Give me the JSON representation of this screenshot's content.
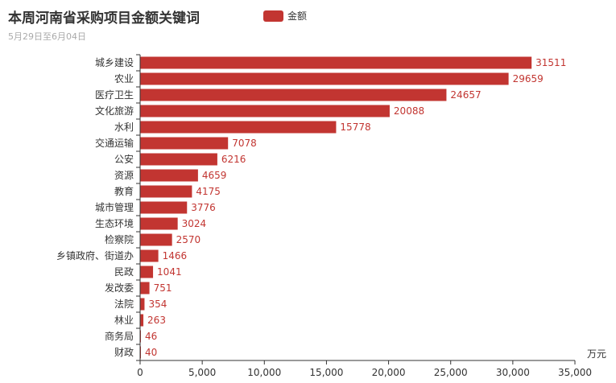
{
  "title": "本周河南省采购项目金额关键词",
  "subtitle": "5月29日至6月04日",
  "legend": {
    "label": "金额",
    "color": "#c23531"
  },
  "chart_data": {
    "type": "bar",
    "orientation": "horizontal",
    "categories": [
      "城乡建设",
      "农业",
      "医疗卫生",
      "文化旅游",
      "水利",
      "交通运输",
      "公安",
      "资源",
      "教育",
      "城市管理",
      "生态环境",
      "检察院",
      "乡镇政府、街道办",
      "民政",
      "发改委",
      "法院",
      "林业",
      "商务局",
      "财政"
    ],
    "series": [
      {
        "name": "金额",
        "values": [
          31511,
          29659,
          24657,
          20088,
          15778,
          7078,
          6216,
          4659,
          4175,
          3776,
          3024,
          2570,
          1466,
          1041,
          751,
          354,
          263,
          46,
          40
        ]
      }
    ],
    "x_ticks": [
      "0",
      "5,000",
      "10,000",
      "15,000",
      "20,000",
      "25,000",
      "30,000",
      "35,000"
    ],
    "xlim": [
      0,
      35000
    ],
    "xlabel": "万元",
    "bar_color": "#c23531",
    "grid": false,
    "legend_position": "top"
  }
}
